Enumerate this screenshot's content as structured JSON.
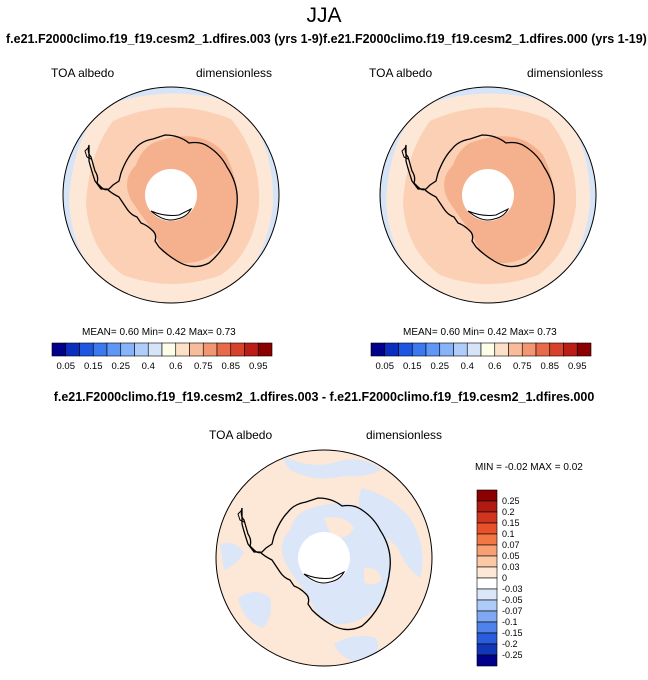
{
  "title": "JJA",
  "panels": [
    {
      "case_title": "f.e21.F2000climo.f19_f19.cesm2_1.dfires.003 (yrs 1-9)",
      "field_label": "TOA albedo",
      "units_label": "dimensionless",
      "stats": {
        "mean_label": "MEAN=",
        "mean": "0.60",
        "min_label": "Min=",
        "min": "0.42",
        "max_label": "Max=",
        "max": "0.73"
      }
    },
    {
      "case_title": "f.e21.F2000climo.f19_f19.cesm2_1.dfires.000 (yrs 1-19)",
      "field_label": "TOA albedo",
      "units_label": "dimensionless",
      "stats": {
        "mean_label": "MEAN=",
        "mean": "0.60",
        "min_label": "Min=",
        "min": "0.42",
        "max_label": "Max=",
        "max": "0.73"
      }
    }
  ],
  "abs_colorbar": {
    "tick_labels": [
      "0.05",
      "0.15",
      "0.25",
      "0.4",
      "0.6",
      "0.75",
      "0.85",
      "0.95"
    ],
    "colors": [
      "#00008b",
      "#0a2fbf",
      "#1f55e0",
      "#3c78ef",
      "#5f97f6",
      "#86b3f9",
      "#b0ccf8",
      "#d6e4f8",
      "#fdfde8",
      "#fde0c8",
      "#f8bc9b",
      "#f19670",
      "#e86a48",
      "#d8412a",
      "#bb1e16",
      "#8b0000"
    ]
  },
  "difference": {
    "title": "f.e21.F2000climo.f19_f19.cesm2_1.dfires.003 - f.e21.F2000climo.f19_f19.cesm2_1.dfires.000",
    "field_label": "TOA albedo",
    "units_label": "dimensionless",
    "minmax": "MIN = -0.02 MAX = 0.02",
    "colorbar": {
      "tick_labels": [
        "0.25",
        "0.2",
        "0.15",
        "0.1",
        "0.07",
        "0.05",
        "0.03",
        "0",
        "-0.03",
        "-0.05",
        "-0.07",
        "-0.1",
        "-0.15",
        "-0.2",
        "-0.25"
      ],
      "colors": [
        "#8b0000",
        "#b01a10",
        "#d03520",
        "#e8512a",
        "#f27744",
        "#f89f74",
        "#fbc9a6",
        "#fde7d6",
        "#ffffff",
        "#dbe6f8",
        "#aecaf6",
        "#7fa8f2",
        "#4f82ea",
        "#2a5ddd",
        "#1236b8",
        "#00008b"
      ]
    }
  }
}
